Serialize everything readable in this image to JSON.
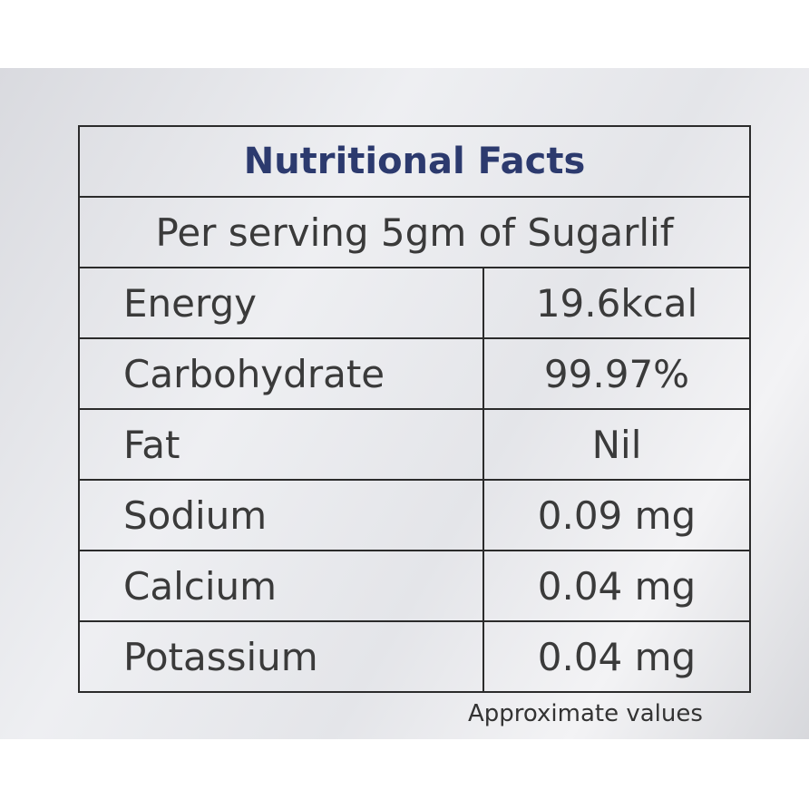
{
  "header": {
    "title": "Nutritional Facts",
    "subtitle": "Per serving 5gm of Sugarlif"
  },
  "table": {
    "rows": [
      [
        "Energy",
        "19.6kcal"
      ],
      [
        "Carbohydrate",
        "99.97%"
      ],
      [
        "Fat",
        "Nil"
      ],
      [
        "Sodium",
        "0.09 mg"
      ],
      [
        "Calcium",
        "0.04 mg"
      ],
      [
        "Potassium",
        "0.04 mg"
      ]
    ]
  },
  "footnote": "Approximate values"
}
